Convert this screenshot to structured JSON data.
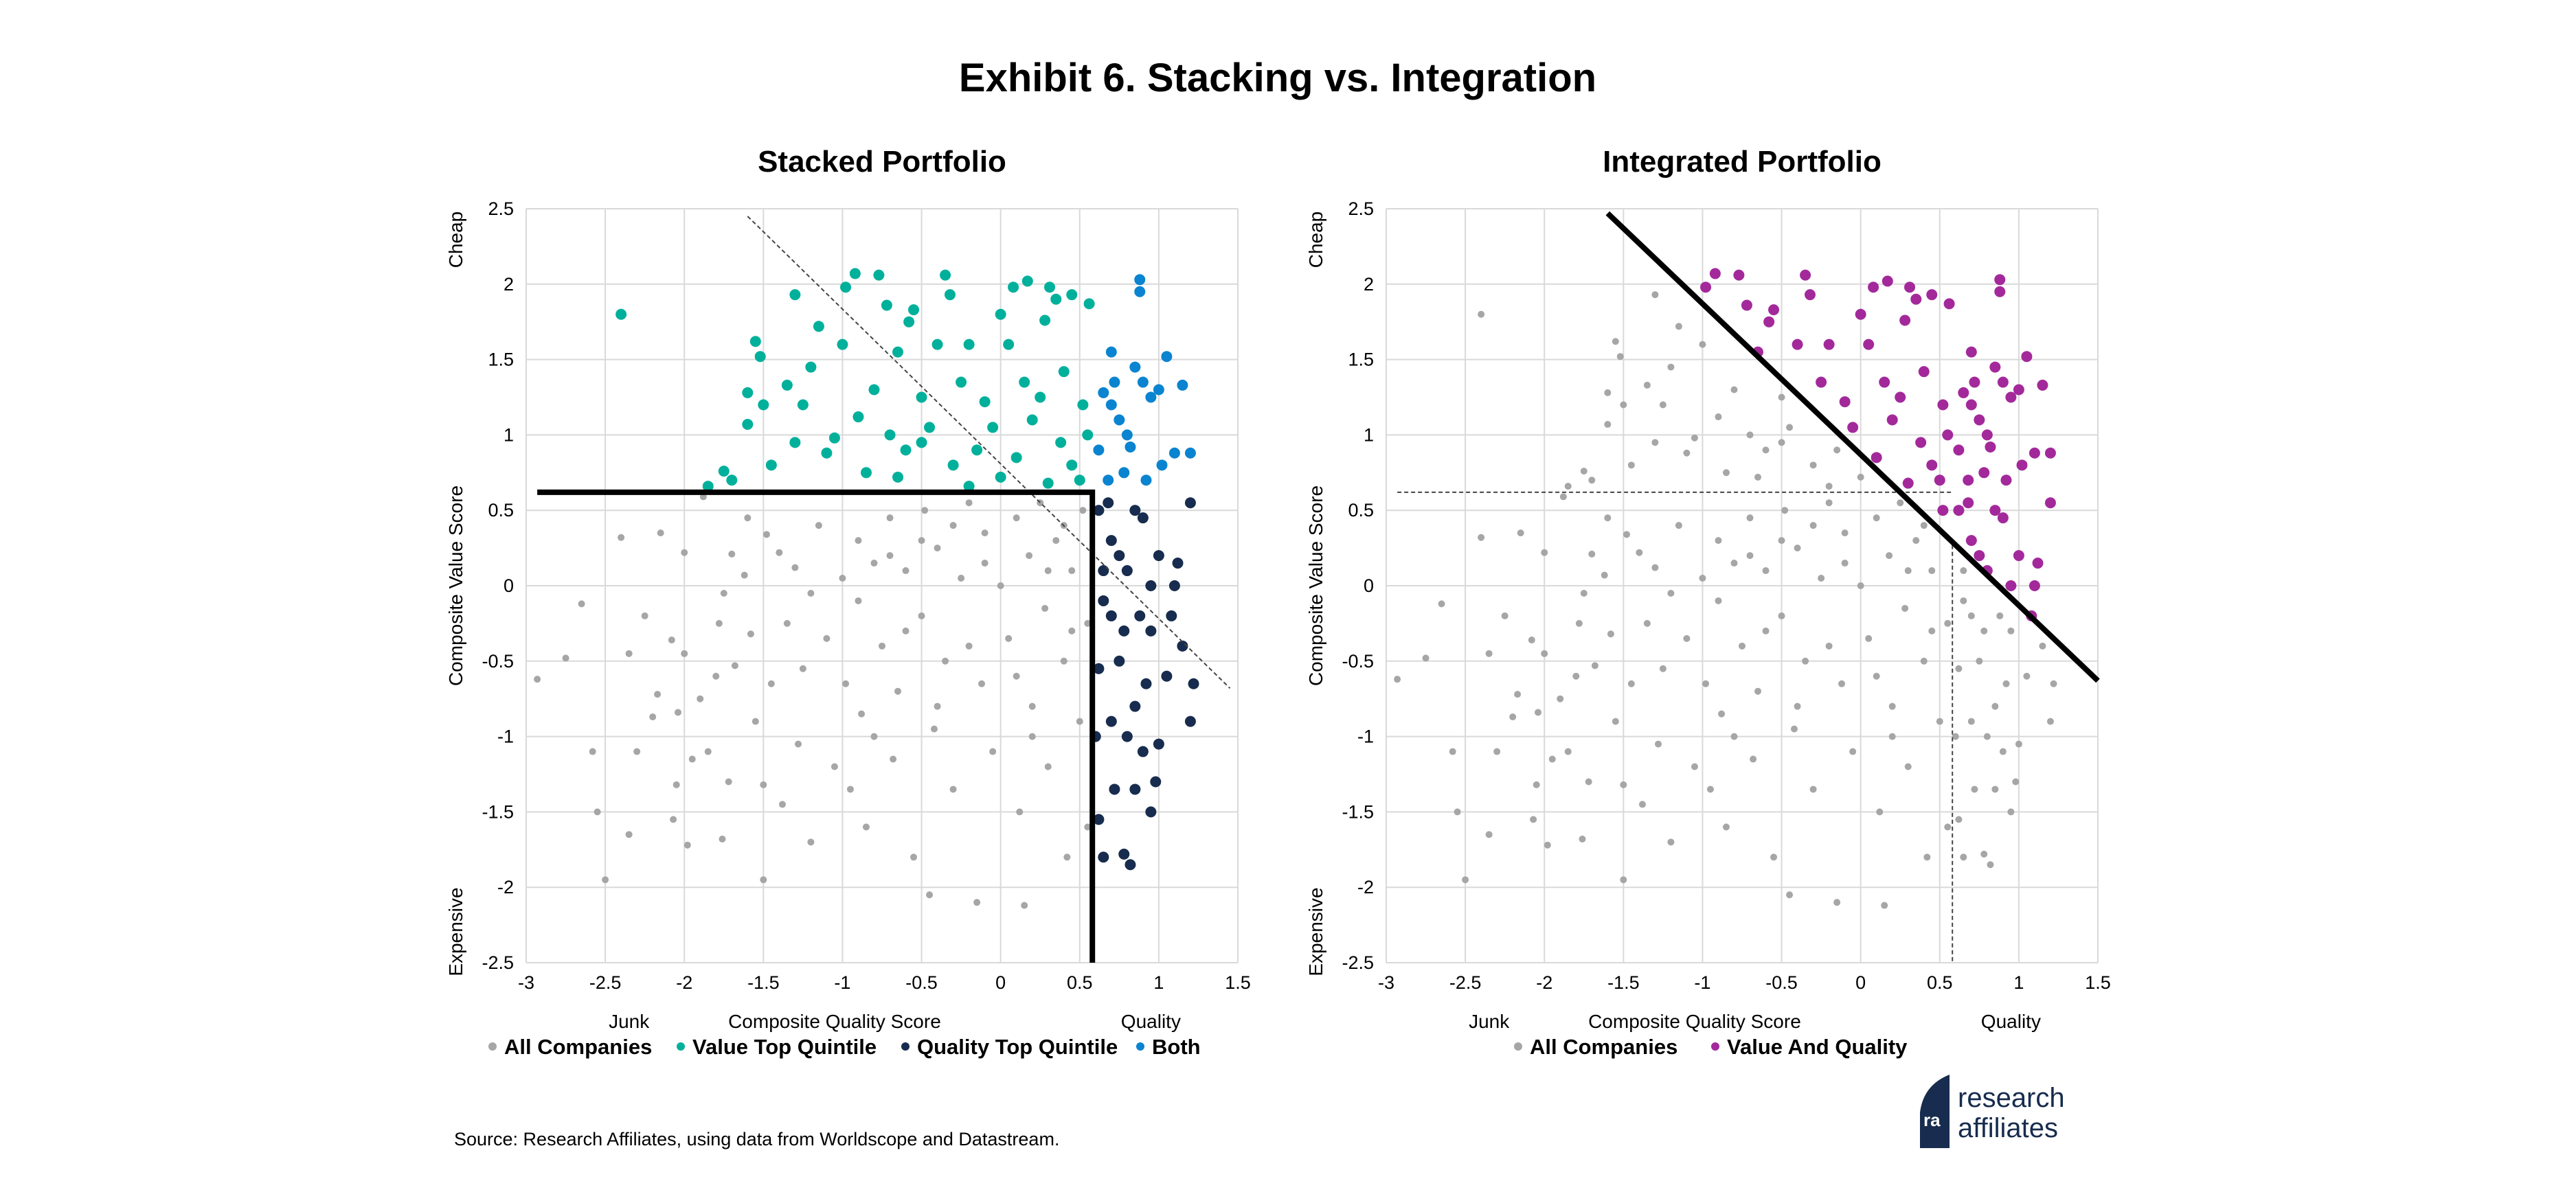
{
  "title": "Exhibit 6. Stacking vs. Integration",
  "source": "Source: Research Affiliates, using data from Worldscope and Datastream.",
  "logo": {
    "line1": "research",
    "line2": "affiliates",
    "mark": "ra"
  },
  "colors": {
    "all": "#a6a6a6",
    "value": "#00b09b",
    "quality": "#172c4e",
    "both": "#0a84d0",
    "value_and_quality": "#a3299b"
  },
  "chart_data": [
    {
      "type": "scatter",
      "title": "Stacked Portfolio",
      "xlabel": "Composite Quality Score",
      "ylabel": "Composite Value Score",
      "x_end_labels": {
        "low": "Junk",
        "high": "Quality"
      },
      "y_end_labels": {
        "high": "Cheap",
        "low": "Expensive"
      },
      "xlim": [
        -3,
        1.5
      ],
      "ylim": [
        -2.5,
        2.5
      ],
      "xticks": [
        "-3",
        "-2.5",
        "-2",
        "-1.5",
        "-1",
        "-0.5",
        "0",
        "0.5",
        "1",
        "1.5"
      ],
      "yticks": [
        "2.5",
        "2",
        "1.5",
        "1",
        "0.5",
        "0",
        "-0.5",
        "-1",
        "-1.5",
        "-2",
        "-2.5"
      ],
      "grid": true,
      "value_threshold": 0.62,
      "quality_threshold": 0.58,
      "legend": [
        "All Companies",
        "Value Top Quintile",
        "Quality Top Quintile",
        "Both"
      ],
      "legend_placement": "bottom"
    },
    {
      "type": "scatter",
      "title": "Integrated Portfolio",
      "xlabel": "Composite Quality Score",
      "ylabel": "Composite Value Score",
      "x_end_labels": {
        "low": "Junk",
        "high": "Quality"
      },
      "y_end_labels": {
        "high": "Cheap",
        "low": "Expensive"
      },
      "xlim": [
        -3,
        1.5
      ],
      "ylim": [
        -2.5,
        2.5
      ],
      "xticks": [
        "-3",
        "-2.5",
        "-2",
        "-1.5",
        "-1",
        "-0.5",
        "0",
        "0.5",
        "1",
        "1.5"
      ],
      "yticks": [
        "2.5",
        "2",
        "1.5",
        "1",
        "0.5",
        "0",
        "-0.5",
        "-1",
        "-1.5",
        "-2",
        "-2.5"
      ],
      "grid": true,
      "integrated_cutoff_sum": 0.87,
      "frontier": [
        [
          -1.6,
          2.47
        ],
        [
          1.5,
          -0.63
        ]
      ],
      "legend": [
        "All Companies",
        "Value And Quality"
      ],
      "legend_placement": "bottom"
    }
  ],
  "points": [
    [
      -2.4,
      1.8
    ],
    [
      -2.93,
      -0.62
    ],
    [
      -2.75,
      -0.48
    ],
    [
      -2.65,
      -0.12
    ],
    [
      -2.58,
      -1.1
    ],
    [
      -2.55,
      -1.5
    ],
    [
      -2.5,
      -1.95
    ],
    [
      -2.4,
      0.32
    ],
    [
      -2.35,
      -1.65
    ],
    [
      -2.35,
      -0.45
    ],
    [
      -2.3,
      -1.1
    ],
    [
      -2.25,
      -0.2
    ],
    [
      -2.2,
      -0.87
    ],
    [
      -2.17,
      -0.72
    ],
    [
      -2.15,
      0.35
    ],
    [
      -2.08,
      -0.36
    ],
    [
      -2.07,
      -1.55
    ],
    [
      -2.05,
      -1.32
    ],
    [
      -2.04,
      -0.84
    ],
    [
      -2.0,
      0.22
    ],
    [
      -2.0,
      -0.45
    ],
    [
      -1.98,
      -1.72
    ],
    [
      -1.95,
      -1.15
    ],
    [
      -1.9,
      -0.75
    ],
    [
      -1.88,
      0.59
    ],
    [
      -1.85,
      -1.1
    ],
    [
      -1.8,
      -0.6
    ],
    [
      -1.78,
      -0.25
    ],
    [
      -1.76,
      -1.68
    ],
    [
      -1.75,
      -0.05
    ],
    [
      -1.72,
      -1.3
    ],
    [
      -1.7,
      0.21
    ],
    [
      -1.68,
      -0.53
    ],
    [
      -1.62,
      0.07
    ],
    [
      -1.6,
      0.45
    ],
    [
      -1.58,
      -0.32
    ],
    [
      -1.55,
      -0.9
    ],
    [
      -1.5,
      -1.95
    ],
    [
      -1.5,
      -1.32
    ],
    [
      -1.48,
      0.34
    ],
    [
      -1.45,
      -0.65
    ],
    [
      -1.4,
      0.22
    ],
    [
      -1.38,
      -1.45
    ],
    [
      -1.35,
      -0.25
    ],
    [
      -1.3,
      0.12
    ],
    [
      -1.28,
      -1.05
    ],
    [
      -1.25,
      -0.55
    ],
    [
      -1.2,
      -1.7
    ],
    [
      -1.15,
      0.4
    ],
    [
      -1.1,
      -0.35
    ],
    [
      -1.05,
      -1.2
    ],
    [
      -1.0,
      0.05
    ],
    [
      -0.98,
      -0.65
    ],
    [
      -0.95,
      -1.35
    ],
    [
      -0.9,
      0.3
    ],
    [
      -0.88,
      -0.85
    ],
    [
      -0.85,
      -1.6
    ],
    [
      -0.8,
      0.15
    ],
    [
      -0.75,
      -0.4
    ],
    [
      -0.7,
      0.45
    ],
    [
      -0.68,
      -1.15
    ],
    [
      -0.65,
      -0.7
    ],
    [
      -0.6,
      0.1
    ],
    [
      -0.55,
      -1.8
    ],
    [
      -0.5,
      -0.2
    ],
    [
      -0.48,
      0.5
    ],
    [
      -0.45,
      -2.05
    ],
    [
      -0.42,
      -0.95
    ],
    [
      -0.4,
      0.25
    ],
    [
      -0.35,
      -0.5
    ],
    [
      -0.3,
      -1.35
    ],
    [
      -0.25,
      0.05
    ],
    [
      -0.2,
      0.55
    ],
    [
      -0.15,
      -2.1
    ],
    [
      -0.12,
      -0.65
    ],
    [
      -0.1,
      0.35
    ],
    [
      -0.05,
      -1.1
    ],
    [
      0.0,
      0.0
    ],
    [
      0.05,
      -0.35
    ],
    [
      0.1,
      0.45
    ],
    [
      0.12,
      -1.5
    ],
    [
      0.15,
      -2.12
    ],
    [
      0.18,
      0.2
    ],
    [
      0.2,
      -0.8
    ],
    [
      0.25,
      0.55
    ],
    [
      0.28,
      -0.15
    ],
    [
      0.3,
      -1.2
    ],
    [
      0.35,
      0.3
    ],
    [
      0.4,
      -0.5
    ],
    [
      0.42,
      -1.8
    ],
    [
      0.45,
      0.1
    ],
    [
      0.5,
      -0.9
    ],
    [
      0.52,
      0.5
    ],
    [
      0.55,
      -1.6
    ],
    [
      0.55,
      -0.25
    ],
    [
      -0.3,
      0.4
    ],
    [
      -0.6,
      -0.3
    ],
    [
      -0.9,
      -0.1
    ],
    [
      0.3,
      0.1
    ],
    [
      -0.2,
      -0.4
    ],
    [
      0.1,
      -0.6
    ],
    [
      -0.4,
      -0.8
    ],
    [
      -0.7,
      0.2
    ],
    [
      0.4,
      0.4
    ],
    [
      -0.1,
      0.15
    ],
    [
      -1.2,
      -0.05
    ],
    [
      -0.8,
      -1.0
    ],
    [
      0.2,
      -1.0
    ],
    [
      -0.5,
      0.3
    ],
    [
      0.45,
      -0.3
    ],
    [
      -1.85,
      0.66
    ],
    [
      -1.7,
      0.7
    ],
    [
      -1.75,
      0.76
    ],
    [
      -1.6,
      1.28
    ],
    [
      -1.55,
      1.62
    ],
    [
      -1.52,
      1.52
    ],
    [
      -1.6,
      1.07
    ],
    [
      -1.5,
      1.2
    ],
    [
      -1.45,
      0.8
    ],
    [
      -1.35,
      1.33
    ],
    [
      -1.3,
      1.93
    ],
    [
      -1.3,
      0.95
    ],
    [
      -1.25,
      1.2
    ],
    [
      -1.2,
      1.45
    ],
    [
      -1.15,
      1.72
    ],
    [
      -1.1,
      0.88
    ],
    [
      -1.05,
      0.98
    ],
    [
      -1.0,
      1.6
    ],
    [
      -0.98,
      1.98
    ],
    [
      -0.92,
      2.07
    ],
    [
      -0.9,
      1.12
    ],
    [
      -0.85,
      0.75
    ],
    [
      -0.8,
      1.3
    ],
    [
      -0.77,
      2.06
    ],
    [
      -0.72,
      1.86
    ],
    [
      -0.7,
      1.0
    ],
    [
      -0.65,
      1.55
    ],
    [
      -0.6,
      0.9
    ],
    [
      -0.58,
      1.75
    ],
    [
      -0.55,
      1.83
    ],
    [
      -0.5,
      1.25
    ],
    [
      -0.45,
      1.05
    ],
    [
      -0.4,
      1.6
    ],
    [
      -0.35,
      2.06
    ],
    [
      -0.32,
      1.93
    ],
    [
      -0.3,
      0.8
    ],
    [
      -0.25,
      1.35
    ],
    [
      -0.2,
      1.6
    ],
    [
      -0.15,
      0.9
    ],
    [
      -0.1,
      1.22
    ],
    [
      -0.05,
      1.05
    ],
    [
      0.0,
      1.8
    ],
    [
      0.05,
      1.6
    ],
    [
      0.08,
      1.98
    ],
    [
      0.1,
      0.85
    ],
    [
      0.15,
      1.35
    ],
    [
      0.17,
      2.02
    ],
    [
      0.2,
      1.1
    ],
    [
      0.25,
      1.25
    ],
    [
      0.28,
      1.76
    ],
    [
      0.31,
      1.98
    ],
    [
      0.35,
      1.9
    ],
    [
      0.38,
      0.95
    ],
    [
      0.4,
      1.42
    ],
    [
      0.45,
      1.93
    ],
    [
      0.5,
      0.7
    ],
    [
      0.52,
      1.2
    ],
    [
      0.56,
      1.87
    ],
    [
      0.55,
      1.0
    ],
    [
      0.3,
      0.68
    ],
    [
      -0.2,
      0.66
    ],
    [
      0.0,
      0.72
    ],
    [
      0.45,
      0.8
    ],
    [
      -0.5,
      0.95
    ],
    [
      -0.65,
      0.72
    ],
    [
      0.62,
      0.5
    ],
    [
      0.65,
      -0.1
    ],
    [
      0.7,
      0.3
    ],
    [
      0.75,
      -0.5
    ],
    [
      0.8,
      0.1
    ],
    [
      0.85,
      -0.8
    ],
    [
      0.9,
      0.45
    ],
    [
      0.95,
      -0.3
    ],
    [
      1.0,
      0.2
    ],
    [
      1.05,
      -0.6
    ],
    [
      1.1,
      0.0
    ],
    [
      1.15,
      -0.4
    ],
    [
      1.2,
      0.55
    ],
    [
      1.22,
      -0.65
    ],
    [
      1.2,
      -0.9
    ],
    [
      0.62,
      -1.55
    ],
    [
      0.65,
      -1.8
    ],
    [
      0.72,
      -1.35
    ],
    [
      0.78,
      -1.78
    ],
    [
      0.82,
      -1.85
    ],
    [
      0.85,
      -1.35
    ],
    [
      0.95,
      -1.5
    ],
    [
      0.98,
      -1.3
    ],
    [
      0.6,
      -1.0
    ],
    [
      0.7,
      -0.9
    ],
    [
      0.8,
      -1.0
    ],
    [
      0.9,
      -1.1
    ],
    [
      1.0,
      -1.05
    ],
    [
      0.68,
      0.55
    ],
    [
      0.75,
      0.2
    ],
    [
      0.88,
      -0.2
    ],
    [
      0.92,
      -0.65
    ],
    [
      1.08,
      -0.2
    ],
    [
      0.65,
      0.1
    ],
    [
      0.78,
      -0.3
    ],
    [
      0.62,
      -0.55
    ],
    [
      0.85,
      0.5
    ],
    [
      1.12,
      0.15
    ],
    [
      0.7,
      -0.2
    ],
    [
      0.95,
      0.0
    ],
    [
      0.62,
      0.9
    ],
    [
      0.65,
      1.28
    ],
    [
      0.7,
      1.55
    ],
    [
      0.72,
      1.35
    ],
    [
      0.75,
      1.1
    ],
    [
      0.8,
      1.0
    ],
    [
      0.85,
      1.45
    ],
    [
      0.88,
      2.03
    ],
    [
      0.88,
      1.95
    ],
    [
      0.9,
      1.35
    ],
    [
      0.95,
      1.25
    ],
    [
      1.0,
      1.3
    ],
    [
      1.05,
      1.52
    ],
    [
      1.1,
      0.88
    ],
    [
      1.15,
      1.33
    ],
    [
      1.2,
      0.88
    ],
    [
      0.68,
      0.7
    ],
    [
      0.78,
      0.75
    ],
    [
      0.92,
      0.7
    ],
    [
      1.02,
      0.8
    ],
    [
      0.82,
      0.92
    ],
    [
      0.7,
      1.2
    ]
  ]
}
